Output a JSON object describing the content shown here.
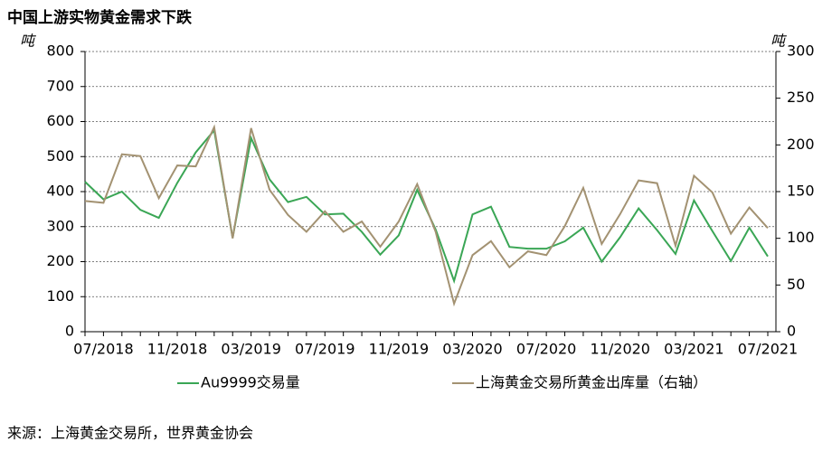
{
  "chart_data": {
    "type": "line",
    "title": "中国上游实物黄金需求下跌",
    "y_label": "吨",
    "y2_label": "吨",
    "source": "来源：上海黄金交易所，世界黄金协会",
    "categories": [
      null,
      "07/2018",
      null,
      null,
      null,
      "11/2018",
      null,
      null,
      null,
      "03/2019",
      null,
      null,
      null,
      "07/2019",
      null,
      null,
      null,
      "11/2019",
      null,
      null,
      null,
      "03/2020",
      null,
      null,
      null,
      "07/2020",
      null,
      null,
      null,
      "11/2020",
      null,
      null,
      null,
      "03/2021",
      null,
      null,
      null,
      "07/2021"
    ],
    "series": [
      {
        "name": "Au9999交易量",
        "color": "#3aa655",
        "values": [
          428,
          378,
          400,
          348,
          325,
          425,
          512,
          575,
          268,
          553,
          435,
          370,
          385,
          335,
          337,
          285,
          220,
          275,
          405,
          292,
          145,
          335,
          357,
          242,
          237,
          237,
          258,
          297,
          200,
          270,
          352,
          290,
          222,
          375,
          287,
          202,
          297,
          215
        ]
      },
      {
        "name": "上海黄金交易所黄金出库量（右轴）",
        "color": "#a39272",
        "axis": "y2",
        "values": [
          140,
          138,
          190,
          188,
          143,
          178,
          177,
          219,
          100,
          218,
          152,
          125,
          107,
          129,
          107,
          118,
          91,
          118,
          158,
          107,
          30,
          82,
          97,
          69,
          86,
          82,
          113,
          154,
          94,
          126,
          162,
          159,
          92,
          167,
          149,
          105,
          133,
          111
        ]
      }
    ],
    "ylim": [
      0,
      800
    ],
    "yticks": [
      0,
      100,
      200,
      300,
      400,
      500,
      600,
      700,
      800
    ],
    "y2lim": [
      0,
      300
    ],
    "y2ticks": [
      0,
      50,
      100,
      150,
      200,
      250,
      300
    ],
    "grid": true,
    "legend": "bottom"
  }
}
